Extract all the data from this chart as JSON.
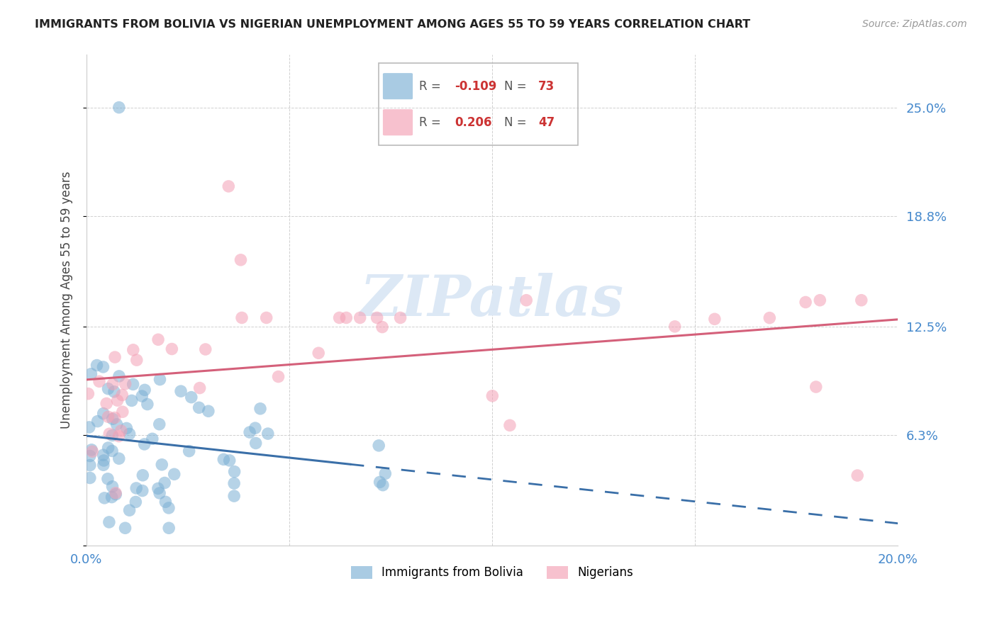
{
  "title": "IMMIGRANTS FROM BOLIVIA VS NIGERIAN UNEMPLOYMENT AMONG AGES 55 TO 59 YEARS CORRELATION CHART",
  "source": "Source: ZipAtlas.com",
  "ylabel": "Unemployment Among Ages 55 to 59 years",
  "xlim": [
    0.0,
    0.2
  ],
  "ylim": [
    0.0,
    0.28
  ],
  "ytick_vals": [
    0.0,
    0.063,
    0.125,
    0.188,
    0.25
  ],
  "ytick_labels": [
    "",
    "6.3%",
    "12.5%",
    "18.8%",
    "25.0%"
  ],
  "xtick_vals": [
    0.0,
    0.05,
    0.1,
    0.15,
    0.2
  ],
  "xtick_labels": [
    "0.0%",
    "",
    "",
    "",
    "20.0%"
  ],
  "bolivia_color": "#7bafd4",
  "bolivia_line_color": "#3a6fa8",
  "nigeria_color": "#f4a0b5",
  "nigeria_line_color": "#d4607a",
  "bolivia_R": -0.109,
  "bolivia_N": 73,
  "nigeria_R": 0.206,
  "nigeria_N": 47,
  "watermark": "ZIPatlas",
  "legend_bolivia": "Immigrants from Bolivia",
  "legend_nigeria": "Nigerians",
  "r_color": "#cc3333",
  "n_color": "#cc3333",
  "label_color": "#555555"
}
